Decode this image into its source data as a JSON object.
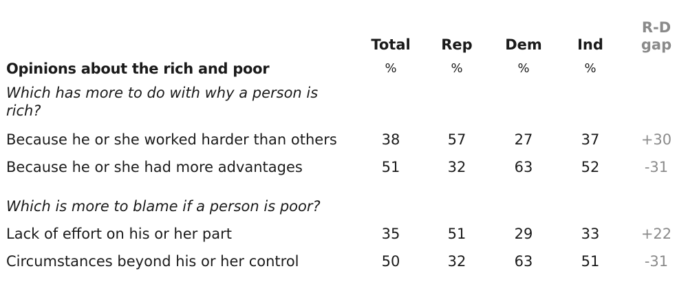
{
  "table": {
    "title": "Opinions about the rich and poor",
    "columns": [
      {
        "key": "total",
        "label": "Total",
        "unit": "%"
      },
      {
        "key": "rep",
        "label": "Rep",
        "unit": "%"
      },
      {
        "key": "dem",
        "label": "Dem",
        "unit": "%"
      },
      {
        "key": "ind",
        "label": "Ind",
        "unit": "%"
      }
    ],
    "gap_header": {
      "line1": "R-D",
      "line2": "gap"
    },
    "sections": [
      {
        "question": "Which has more to do with why a person is rich?",
        "rows": [
          {
            "label": "Because he or she worked harder than others",
            "values": [
              "38",
              "57",
              "27",
              "37"
            ],
            "gap": "+30"
          },
          {
            "label": "Because he or she had more advantages",
            "values": [
              "51",
              "32",
              "63",
              "52"
            ],
            "gap": "-31"
          }
        ]
      },
      {
        "question": "Which is more to blame if a person is poor?",
        "rows": [
          {
            "label": "Lack of effort on his or her part",
            "values": [
              "35",
              "51",
              "29",
              "33"
            ],
            "gap": "+22"
          },
          {
            "label": "Circumstances beyond his or her control",
            "values": [
              "50",
              "32",
              "63",
              "51"
            ],
            "gap": "-31"
          }
        ]
      }
    ],
    "colors": {
      "text": "#1a1a1a",
      "gap": "#8a8a8a"
    }
  }
}
